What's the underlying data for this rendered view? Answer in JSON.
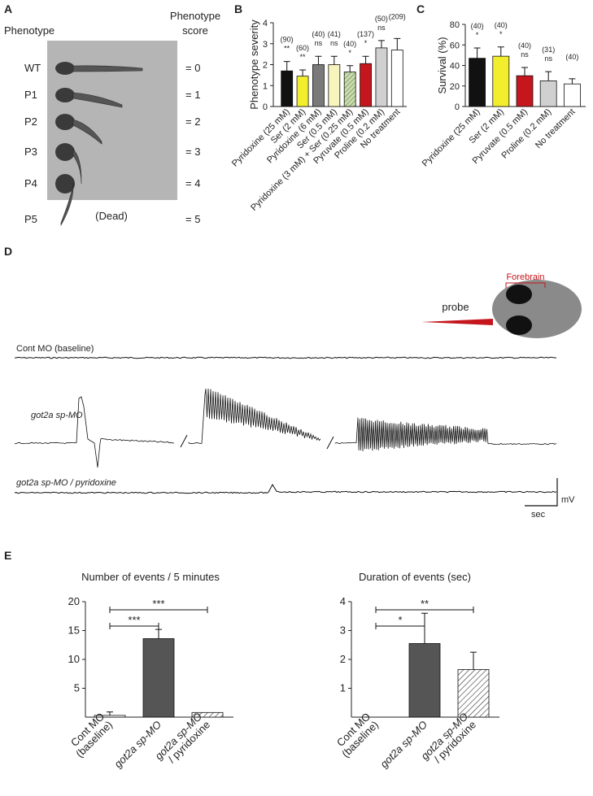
{
  "panels": {
    "A": {
      "letter": "A",
      "header_left": "Phenotype",
      "header_right": [
        "Phenotype",
        "score"
      ],
      "rows": [
        {
          "label": "WT",
          "score": "= 0"
        },
        {
          "label": "P1",
          "score": "= 1"
        },
        {
          "label": "P2",
          "score": "= 2"
        },
        {
          "label": "P3",
          "score": "= 3"
        },
        {
          "label": "P4",
          "score": "= 4"
        },
        {
          "label": "P5",
          "score": "= 5"
        }
      ],
      "dead": "(Dead)"
    },
    "B": {
      "letter": "B"
    },
    "C": {
      "letter": "C"
    },
    "D": {
      "letter": "D",
      "traces": [
        "Cont MO (baseline)",
        "got2a sp-MO",
        "got2a sp-MO / pyridoxine"
      ],
      "probe": "probe",
      "forebrain": "Forebrain",
      "mv": "mV",
      "sec": "sec"
    },
    "E": {
      "letter": "E"
    }
  },
  "chart_data": [
    {
      "type": "bar",
      "ylabel": "Phenotype severity",
      "categories": [
        "Pyridoxine (25 mM)",
        "Ser (2 mM)",
        "Pyridoxine (6 mM)",
        "Ser (0.5 mM)",
        "Pyridoxine (3 mM) + Ser (0.25 mM)",
        "Pyruvate (0.5 mM)",
        "Proline (0.2 mM)",
        "No treatment"
      ],
      "values": [
        1.7,
        1.45,
        2.0,
        2.0,
        1.65,
        2.05,
        2.8,
        2.7
      ],
      "errors": [
        0.45,
        0.3,
        0.4,
        0.4,
        0.3,
        0.35,
        0.35,
        0.55
      ],
      "n_labels": [
        "(90)",
        "(60)",
        "(40)",
        "(41)",
        "(40)",
        "(137)",
        "(50)",
        "(209)"
      ],
      "significance": [
        "**",
        "**",
        "ns",
        "ns",
        "*",
        "*",
        "ns",
        null
      ],
      "colors": [
        "#111111",
        "#f2ee2e",
        "#7a7a7a",
        "#f8f4bd",
        "#c9dcae",
        "#c4161c",
        "#d0d0d0",
        "#ffffff"
      ],
      "hatch": [
        false,
        false,
        false,
        false,
        true,
        false,
        false,
        false
      ],
      "ylim": [
        0,
        4
      ],
      "yticks": [
        0,
        1,
        2,
        3,
        4
      ]
    },
    {
      "type": "bar",
      "ylabel": "Survival (%)",
      "categories": [
        "Pyridoxine  (25 mM)",
        "Ser (2 mM)",
        "Pyruvate (0.5 mM)",
        "Proline (0.2 mM)",
        "No treatment"
      ],
      "values": [
        47,
        49,
        30,
        25,
        22
      ],
      "errors": [
        10,
        9,
        8,
        9,
        5
      ],
      "n_labels": [
        "(40)",
        "(40)",
        "(40)",
        "(31)",
        "(40)"
      ],
      "significance": [
        "*",
        "*",
        "ns",
        "ns",
        null
      ],
      "colors": [
        "#111111",
        "#f2ee2e",
        "#c4161c",
        "#d0d0d0",
        "#ffffff"
      ],
      "hatch": [
        false,
        false,
        false,
        false,
        false
      ],
      "ylim": [
        0,
        80
      ],
      "yticks": [
        0,
        20,
        40,
        60,
        80
      ]
    },
    {
      "type": "bar",
      "title": "Number of events / 5 minutes",
      "categories": [
        [
          "Cont MO",
          "(baseline)"
        ],
        [
          "got2a sp-MO"
        ],
        [
          "got2a sp-MO",
          "/ pyridoxine"
        ]
      ],
      "values": [
        0.3,
        13.6,
        0.8
      ],
      "errors": [
        0.6,
        1.6,
        null
      ],
      "colors": [
        "#ffffff",
        "#555555",
        "#ffffff"
      ],
      "hatch": [
        false,
        false,
        true
      ],
      "comparisons": [
        {
          "label": "***",
          "pair": [
            0,
            1
          ]
        },
        {
          "label": "***",
          "pair": [
            0,
            2
          ]
        }
      ],
      "ylim": [
        0,
        20
      ],
      "yticks": [
        5,
        10,
        15,
        20
      ]
    },
    {
      "type": "bar",
      "title": "Duration of events (sec)",
      "categories": [
        [
          "Cont MO",
          "(baseline)"
        ],
        [
          "got2a sp-MO"
        ],
        [
          "got2a sp-MO",
          "/ pyridoxine"
        ]
      ],
      "values": [
        0,
        2.55,
        1.65
      ],
      "errors": [
        null,
        1.05,
        0.6
      ],
      "colors": [
        "#ffffff",
        "#555555",
        "#ffffff"
      ],
      "hatch": [
        false,
        false,
        true
      ],
      "comparisons": [
        {
          "label": "*",
          "pair": [
            0,
            1
          ]
        },
        {
          "label": "**",
          "pair": [
            0,
            2
          ]
        }
      ],
      "ylim": [
        0,
        4
      ],
      "yticks": [
        1,
        2,
        3,
        4
      ]
    }
  ]
}
